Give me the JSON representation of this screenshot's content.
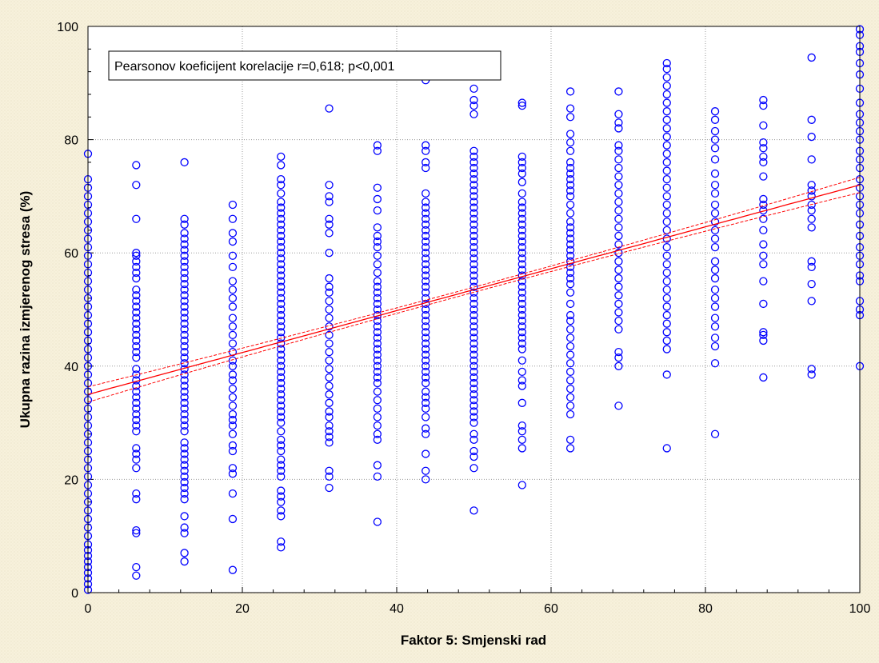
{
  "chart_data": {
    "type": "scatter",
    "title": "",
    "xlabel": "Faktor 5: Smjenski rad",
    "ylabel": "Ukupna razina izmjerenog stresa (%)",
    "xlim": [
      0,
      100
    ],
    "ylim": [
      0,
      100
    ],
    "x_ticks": [
      "0",
      "20",
      "40",
      "60",
      "80",
      "100"
    ],
    "y_ticks": [
      "0",
      "20",
      "40",
      "60",
      "80",
      "100"
    ],
    "grid": true,
    "annotation": "Pearsonov koeficijent korelacije r=0,618; p<0,001",
    "annotation_position": "top-left",
    "colors": {
      "points": "#0000ff",
      "fit_line": "#ff0000",
      "plot_background": "#ffffff",
      "grid": "#9a9a9a"
    },
    "fit_line": {
      "type": "linear",
      "intercept": 35,
      "slope": 0.37,
      "confidence_band_halfwidth": 0.9,
      "confidence_band_halfwidth_center": 0.45
    },
    "series": [
      {
        "x_groups": [
          {
            "x": 0,
            "y": [
              0.5,
              1.5,
              2.5,
              3.5,
              4.5,
              5.5,
              6.5,
              7.5,
              8.5,
              10,
              11.5,
              13,
              14.5,
              16,
              17.5,
              19,
              20.5,
              22,
              23.5,
              25,
              26.5,
              28,
              29.5,
              31,
              32.5,
              34,
              35.5,
              37,
              38.5,
              40,
              41.5,
              43,
              44.5,
              46,
              47.5,
              49,
              50.5,
              52,
              53.5,
              55,
              56.5,
              58,
              59.5,
              61,
              62.5,
              64,
              65.5,
              67,
              68.5,
              70,
              71.5,
              73,
              77.5
            ]
          },
          {
            "x": 6.25,
            "y": [
              3,
              4.5,
              10.5,
              11,
              16.5,
              17.5,
              22,
              23.5,
              24.5,
              25.5,
              28.5,
              29.5,
              30.5,
              31.5,
              32.5,
              33.5,
              34.5,
              35.5,
              36.5,
              37.5,
              38.5,
              39.5,
              41.5,
              42.5,
              43.5,
              44.5,
              45.5,
              46.5,
              47.5,
              48.5,
              49.5,
              50.5,
              51.5,
              52.5,
              53.5,
              55.5,
              56.5,
              57.5,
              58.5,
              59.5,
              60,
              66,
              72,
              75.5
            ]
          },
          {
            "x": 12.5,
            "y": [
              5.5,
              7,
              10.5,
              11.5,
              13.5,
              16.5,
              17.5,
              18.5,
              19.5,
              20.5,
              21.5,
              22.5,
              23.5,
              24.5,
              25.5,
              26.5,
              28.5,
              29.5,
              30.5,
              31.5,
              32.5,
              33.5,
              34.5,
              35.5,
              36.5,
              37.5,
              38.5,
              39.5,
              40.5,
              41.5,
              42.5,
              43.5,
              44.5,
              45.5,
              46.5,
              47.5,
              48.5,
              49.5,
              50.5,
              51.5,
              52.5,
              53.5,
              54.5,
              55.5,
              56.5,
              57.5,
              58.5,
              59.5,
              60.5,
              61.5,
              62.5,
              63.5,
              65,
              66,
              76
            ]
          },
          {
            "x": 18.75,
            "y": [
              4,
              13,
              17.5,
              21,
              22,
              25,
              26,
              28,
              29.5,
              30.5,
              31.5,
              33,
              34.5,
              36,
              37.5,
              38.5,
              40,
              41,
              42.5,
              44,
              45.5,
              47,
              48.5,
              50.5,
              52,
              53.5,
              55,
              57.5,
              59.5,
              62,
              63.5,
              66,
              68.5
            ]
          },
          {
            "x": 25,
            "y": [
              8,
              9,
              13.5,
              14.5,
              16,
              17,
              18,
              20.5,
              21.5,
              22.5,
              23.5,
              25,
              26,
              27,
              28.5,
              30,
              31,
              32,
              33,
              34,
              35,
              36,
              37,
              38,
              39,
              40,
              41,
              42,
              43,
              44,
              45,
              46,
              47,
              48,
              49,
              50,
              51,
              52,
              53,
              54,
              55,
              56,
              57,
              58,
              59,
              60,
              61,
              62,
              63,
              64,
              65,
              66,
              67,
              68,
              69,
              70.5,
              72,
              73,
              75.5,
              77
            ]
          },
          {
            "x": 31.25,
            "y": [
              18.5,
              20.5,
              21.5,
              26.5,
              27.5,
              28.5,
              29.5,
              31,
              32,
              33.5,
              35,
              36.5,
              38,
              39.5,
              41,
              42.5,
              44,
              45.5,
              47,
              48.5,
              50,
              51.5,
              53,
              54,
              55.5,
              60,
              63.5,
              65,
              66,
              69,
              70,
              72,
              85.5
            ]
          },
          {
            "x": 37.5,
            "y": [
              12.5,
              20.5,
              22.5,
              27,
              28,
              29.5,
              31,
              32.5,
              34,
              35.5,
              37,
              38,
              39,
              40,
              41,
              42,
              43,
              44,
              45,
              46,
              47,
              48,
              49,
              50,
              51,
              52,
              53,
              54,
              55,
              56.5,
              58,
              59.5,
              61,
              62,
              63,
              64.5,
              67.5,
              69.5,
              71.5,
              78,
              79
            ]
          },
          {
            "x": 43.75,
            "y": [
              20,
              21.5,
              24.5,
              28,
              29,
              31,
              32.5,
              33.5,
              34.5,
              35.5,
              37,
              38,
              39,
              40,
              41,
              42,
              43,
              44,
              45,
              46,
              47,
              48,
              49,
              50,
              51,
              52,
              53,
              54,
              55,
              56,
              57,
              58,
              59,
              60,
              61,
              62,
              63,
              64,
              65,
              66,
              67,
              68,
              69,
              70.5,
              75,
              76,
              78,
              79,
              90.5
            ]
          },
          {
            "x": 50,
            "y": [
              14.5,
              22,
              24,
              25,
              27,
              28,
              30,
              31,
              32,
              33,
              34,
              35,
              36,
              37,
              38,
              39,
              40,
              41,
              42,
              43,
              44,
              45,
              46,
              47,
              48,
              49,
              50,
              51,
              52,
              53,
              54,
              55,
              56,
              57,
              58,
              59,
              60,
              61,
              62,
              63,
              64,
              65,
              66,
              67,
              68,
              69,
              70,
              71,
              72,
              73,
              74,
              75,
              76,
              77,
              78,
              84.5,
              86,
              87,
              89
            ]
          },
          {
            "x": 56.25,
            "y": [
              19,
              25.5,
              27,
              28.5,
              29.5,
              33.5,
              36.5,
              37.5,
              39,
              41,
              43,
              44,
              45,
              46,
              47,
              48,
              49,
              50,
              51,
              52,
              53,
              54,
              55,
              56,
              57,
              58,
              59,
              60,
              61,
              62,
              63,
              64,
              65,
              66,
              67,
              68,
              69,
              70.5,
              72.5,
              74,
              75,
              76,
              77,
              86,
              86.5
            ]
          },
          {
            "x": 62.5,
            "y": [
              25.5,
              27,
              31.5,
              33,
              34.5,
              36,
              37.5,
              39,
              40.5,
              42,
              43.5,
              45,
              46.5,
              48,
              49,
              51,
              53,
              54.5,
              55.5,
              56.5,
              57.5,
              58.5,
              59.5,
              60.5,
              61.5,
              62.5,
              63.5,
              64.5,
              65.5,
              67,
              68.5,
              70,
              71,
              72,
              73,
              74,
              75,
              76,
              78,
              79.5,
              81,
              84,
              85.5,
              88.5
            ]
          },
          {
            "x": 68.75,
            "y": [
              33,
              40,
              41.5,
              42.5,
              46.5,
              48,
              49.5,
              51,
              52.5,
              54,
              55.5,
              57,
              58.5,
              60,
              61.5,
              63,
              64.5,
              66,
              67.5,
              69,
              70.5,
              72,
              73.5,
              75,
              76.5,
              78,
              79,
              82,
              83,
              84.5,
              88.5
            ]
          },
          {
            "x": 75,
            "y": [
              25.5,
              38.5,
              43,
              44.5,
              46,
              47.5,
              49,
              50.5,
              52,
              53.5,
              55,
              56.5,
              58,
              59.5,
              61,
              62.5,
              64,
              65.5,
              67,
              68.5,
              70,
              71.5,
              73,
              74.5,
              76,
              77.5,
              79,
              80.5,
              82,
              83.5,
              85,
              86.5,
              88,
              89.5,
              91,
              92.5,
              93.5
            ]
          },
          {
            "x": 81.25,
            "y": [
              28,
              40.5,
              43.5,
              45,
              47,
              48.5,
              50.5,
              52,
              53.5,
              55.5,
              57,
              58.5,
              61,
              62.5,
              64,
              65.5,
              67,
              68.5,
              70.5,
              72,
              74,
              76.5,
              78.5,
              80,
              81.5,
              83.5,
              85
            ]
          },
          {
            "x": 87.5,
            "y": [
              38,
              44.5,
              45.5,
              46,
              51,
              55,
              58,
              59.5,
              61.5,
              64,
              66,
              67.5,
              68.5,
              69.5,
              73.5,
              76,
              77,
              78.5,
              79.5,
              82.5,
              86,
              87
            ]
          },
          {
            "x": 93.75,
            "y": [
              38.5,
              39.5,
              51.5,
              54.5,
              57.5,
              58.5,
              64.5,
              66,
              67.5,
              68.5,
              70,
              71,
              72,
              76.5,
              80.5,
              83.5,
              94.5
            ]
          },
          {
            "x": 100,
            "y": [
              40,
              49,
              50,
              51.5,
              55,
              56,
              58,
              59.5,
              61,
              63,
              65,
              67,
              68.5,
              70,
              71.5,
              73,
              75,
              76.5,
              78,
              80,
              81.5,
              83,
              84.5,
              86.5,
              89,
              91.5,
              93.5,
              95.5,
              96.5,
              98.5,
              99.5
            ]
          }
        ]
      }
    ]
  }
}
